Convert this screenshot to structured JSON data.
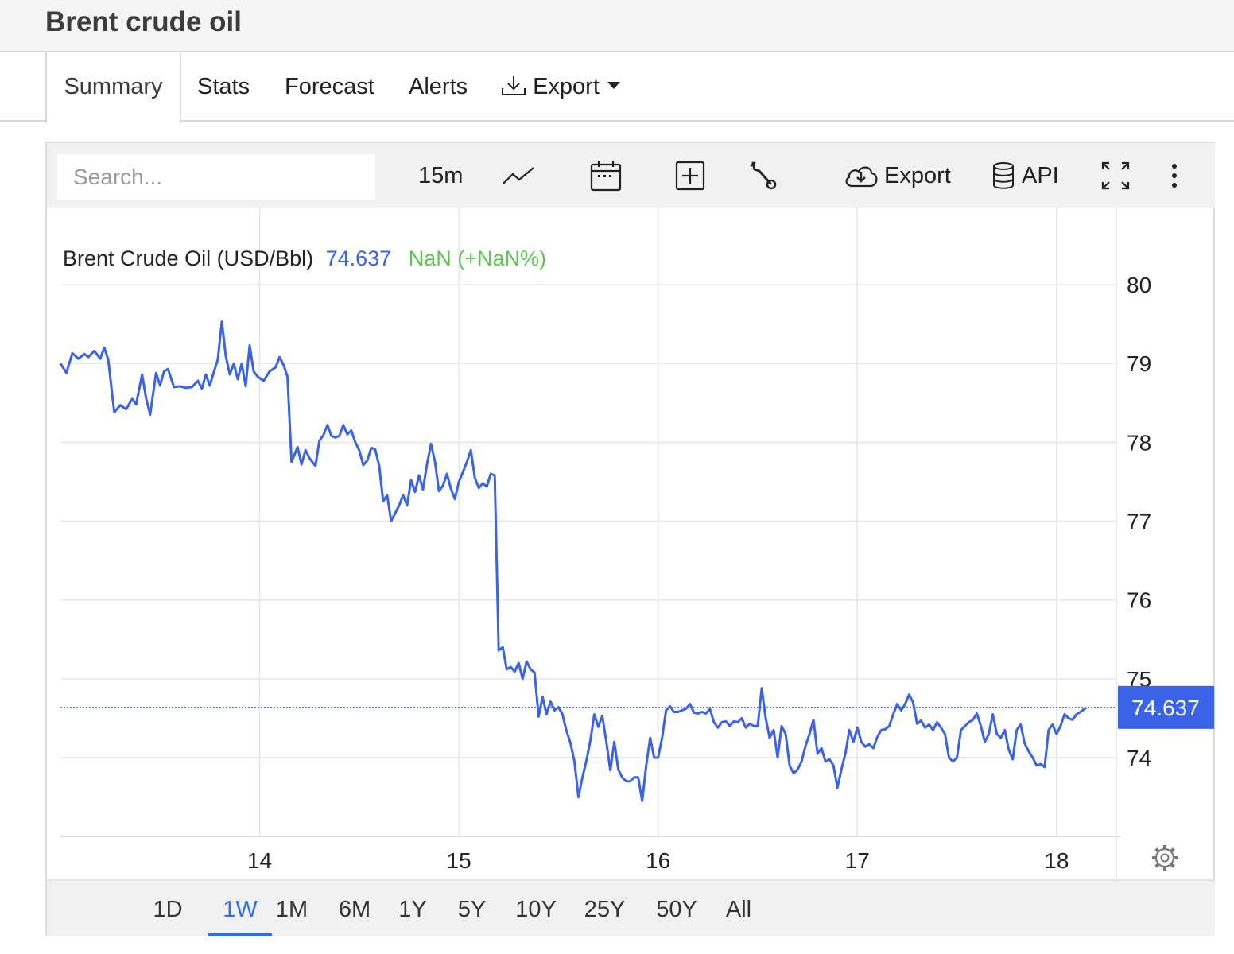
{
  "page": {
    "title": "Brent crude oil"
  },
  "tabs": [
    {
      "label": "Summary",
      "active": true
    },
    {
      "label": "Stats"
    },
    {
      "label": "Forecast"
    },
    {
      "label": "Alerts"
    },
    {
      "label": "Export",
      "icon": "download-icon",
      "dropdown": true
    }
  ],
  "toolbar": {
    "search_placeholder": "Search...",
    "interval": "15m",
    "export_label": "Export",
    "api_label": "API",
    "icons": [
      "line-chart-icon",
      "calendar-icon",
      "add-indicator-icon",
      "wrench-icon",
      "cloud-download-icon",
      "database-icon",
      "fullscreen-icon",
      "more-vertical-icon"
    ]
  },
  "chart_legend": {
    "name": "Brent Crude Oil (USD/Bbl)",
    "price": "74.637",
    "change": "NaN (+NaN%)"
  },
  "colors": {
    "line": "#3b63e8",
    "change": "#5cc651",
    "active": "#2f6ee8"
  },
  "chart_data": {
    "type": "line",
    "title": "",
    "series": [
      {
        "name": "Brent Crude Oil (USD/Bbl)",
        "points": [
          [
            13.0,
            79.0
          ],
          [
            13.03,
            78.88
          ],
          [
            13.06,
            79.13
          ],
          [
            13.09,
            79.06
          ],
          [
            13.12,
            79.12
          ],
          [
            13.14,
            79.08
          ],
          [
            13.17,
            79.16
          ],
          [
            13.2,
            79.06
          ],
          [
            13.22,
            79.2
          ],
          [
            13.24,
            79.05
          ],
          [
            13.27,
            78.38
          ],
          [
            13.3,
            78.47
          ],
          [
            13.33,
            78.42
          ],
          [
            13.36,
            78.55
          ],
          [
            13.38,
            78.48
          ],
          [
            13.41,
            78.86
          ],
          [
            13.43,
            78.56
          ],
          [
            13.45,
            78.35
          ],
          [
            13.48,
            78.88
          ],
          [
            13.5,
            78.72
          ],
          [
            13.52,
            78.9
          ],
          [
            13.54,
            78.93
          ],
          [
            13.57,
            78.7
          ],
          [
            13.6,
            78.71
          ],
          [
            13.63,
            78.69
          ],
          [
            13.66,
            78.7
          ],
          [
            13.69,
            78.78
          ],
          [
            13.71,
            78.68
          ],
          [
            13.73,
            78.86
          ],
          [
            13.75,
            78.72
          ],
          [
            13.77,
            78.89
          ],
          [
            13.79,
            79.05
          ],
          [
            13.81,
            79.53
          ],
          [
            13.83,
            79.09
          ],
          [
            13.85,
            78.86
          ],
          [
            13.87,
            79.0
          ],
          [
            13.89,
            78.8
          ],
          [
            13.91,
            79.0
          ],
          [
            13.93,
            78.71
          ],
          [
            13.95,
            79.23
          ],
          [
            13.97,
            78.9
          ],
          [
            13.99,
            78.83
          ],
          [
            14.02,
            78.78
          ],
          [
            14.05,
            78.9
          ],
          [
            14.08,
            78.95
          ],
          [
            14.1,
            79.08
          ],
          [
            14.12,
            78.98
          ],
          [
            14.14,
            78.83
          ],
          [
            14.16,
            77.75
          ],
          [
            14.19,
            77.94
          ],
          [
            14.21,
            77.72
          ],
          [
            14.23,
            77.9
          ],
          [
            14.25,
            77.8
          ],
          [
            14.28,
            77.7
          ],
          [
            14.3,
            78.02
          ],
          [
            14.32,
            78.09
          ],
          [
            14.34,
            78.22
          ],
          [
            14.36,
            78.08
          ],
          [
            14.38,
            78.06
          ],
          [
            14.4,
            78.08
          ],
          [
            14.42,
            78.22
          ],
          [
            14.44,
            78.1
          ],
          [
            14.46,
            78.15
          ],
          [
            14.48,
            78.0
          ],
          [
            14.5,
            77.9
          ],
          [
            14.52,
            77.71
          ],
          [
            14.54,
            77.77
          ],
          [
            14.56,
            77.93
          ],
          [
            14.58,
            77.91
          ],
          [
            14.6,
            77.7
          ],
          [
            14.62,
            77.25
          ],
          [
            14.64,
            77.33
          ],
          [
            14.66,
            77.0
          ],
          [
            14.68,
            77.1
          ],
          [
            14.7,
            77.2
          ],
          [
            14.72,
            77.33
          ],
          [
            14.74,
            77.2
          ],
          [
            14.76,
            77.52
          ],
          [
            14.78,
            77.37
          ],
          [
            14.8,
            77.58
          ],
          [
            14.82,
            77.4
          ],
          [
            14.84,
            77.72
          ],
          [
            14.86,
            77.98
          ],
          [
            14.88,
            77.75
          ],
          [
            14.9,
            77.38
          ],
          [
            14.92,
            77.45
          ],
          [
            14.94,
            77.6
          ],
          [
            14.96,
            77.41
          ],
          [
            14.98,
            77.28
          ],
          [
            15.0,
            77.5
          ],
          [
            15.02,
            77.62
          ],
          [
            15.04,
            77.75
          ],
          [
            15.06,
            77.9
          ],
          [
            15.08,
            77.55
          ],
          [
            15.1,
            77.42
          ],
          [
            15.12,
            77.48
          ],
          [
            15.14,
            77.44
          ],
          [
            15.16,
            77.6
          ],
          [
            15.18,
            77.58
          ],
          [
            15.2,
            75.36
          ],
          [
            15.22,
            75.4
          ],
          [
            15.24,
            75.12
          ],
          [
            15.26,
            75.15
          ],
          [
            15.28,
            75.09
          ],
          [
            15.3,
            75.2
          ],
          [
            15.32,
            75.0
          ],
          [
            15.34,
            75.22
          ],
          [
            15.36,
            75.12
          ],
          [
            15.38,
            75.08
          ],
          [
            15.4,
            74.52
          ],
          [
            15.42,
            74.77
          ],
          [
            15.44,
            74.55
          ],
          [
            15.46,
            74.71
          ],
          [
            15.48,
            74.6
          ],
          [
            15.5,
            74.64
          ],
          [
            15.52,
            74.55
          ],
          [
            15.54,
            74.34
          ],
          [
            15.56,
            74.19
          ],
          [
            15.58,
            73.95
          ],
          [
            15.6,
            73.5
          ],
          [
            15.62,
            73.75
          ],
          [
            15.64,
            73.96
          ],
          [
            15.66,
            74.22
          ],
          [
            15.68,
            74.55
          ],
          [
            15.7,
            74.39
          ],
          [
            15.72,
            74.53
          ],
          [
            15.74,
            74.2
          ],
          [
            15.76,
            73.84
          ],
          [
            15.78,
            74.2
          ],
          [
            15.8,
            73.85
          ],
          [
            15.82,
            73.75
          ],
          [
            15.84,
            73.7
          ],
          [
            15.86,
            73.7
          ],
          [
            15.88,
            73.75
          ],
          [
            15.9,
            73.75
          ],
          [
            15.92,
            73.45
          ],
          [
            15.94,
            73.9
          ],
          [
            15.96,
            74.25
          ],
          [
            15.98,
            74.0
          ],
          [
            16.0,
            74.0
          ],
          [
            16.02,
            74.25
          ],
          [
            16.04,
            74.6
          ],
          [
            16.06,
            74.65
          ],
          [
            16.08,
            74.58
          ],
          [
            16.1,
            74.58
          ],
          [
            16.12,
            74.6
          ],
          [
            16.14,
            74.62
          ],
          [
            16.16,
            74.68
          ],
          [
            16.18,
            74.57
          ],
          [
            16.2,
            74.56
          ],
          [
            16.22,
            74.58
          ],
          [
            16.24,
            74.56
          ],
          [
            16.26,
            74.62
          ],
          [
            16.28,
            74.45
          ],
          [
            16.3,
            74.38
          ],
          [
            16.32,
            74.45
          ],
          [
            16.34,
            74.46
          ],
          [
            16.36,
            74.4
          ],
          [
            16.38,
            74.46
          ],
          [
            16.4,
            74.45
          ],
          [
            16.42,
            74.5
          ],
          [
            16.44,
            74.38
          ],
          [
            16.46,
            74.43
          ],
          [
            16.48,
            74.4
          ],
          [
            16.5,
            74.4
          ],
          [
            16.52,
            74.88
          ],
          [
            16.54,
            74.5
          ],
          [
            16.56,
            74.25
          ],
          [
            16.58,
            74.35
          ],
          [
            16.6,
            74.0
          ],
          [
            16.62,
            74.4
          ],
          [
            16.64,
            74.3
          ],
          [
            16.66,
            73.9
          ],
          [
            16.68,
            73.8
          ],
          [
            16.7,
            73.85
          ],
          [
            16.72,
            73.95
          ],
          [
            16.74,
            74.15
          ],
          [
            16.76,
            74.3
          ],
          [
            16.78,
            74.48
          ],
          [
            16.8,
            74.05
          ],
          [
            16.82,
            74.12
          ],
          [
            16.84,
            73.95
          ],
          [
            16.86,
            73.98
          ],
          [
            16.88,
            73.9
          ],
          [
            16.9,
            73.62
          ],
          [
            16.92,
            73.85
          ],
          [
            16.94,
            74.05
          ],
          [
            16.96,
            74.35
          ],
          [
            16.98,
            74.2
          ],
          [
            17.0,
            74.38
          ],
          [
            17.02,
            74.2
          ],
          [
            17.04,
            74.14
          ],
          [
            17.06,
            74.17
          ],
          [
            17.08,
            74.12
          ],
          [
            17.1,
            74.26
          ],
          [
            17.12,
            74.35
          ],
          [
            17.14,
            74.36
          ],
          [
            17.16,
            74.4
          ],
          [
            17.18,
            74.55
          ],
          [
            17.2,
            74.68
          ],
          [
            17.22,
            74.6
          ],
          [
            17.24,
            74.68
          ],
          [
            17.26,
            74.8
          ],
          [
            17.28,
            74.7
          ],
          [
            17.3,
            74.43
          ],
          [
            17.32,
            74.47
          ],
          [
            17.34,
            74.38
          ],
          [
            17.36,
            74.42
          ],
          [
            17.38,
            74.35
          ],
          [
            17.4,
            74.45
          ],
          [
            17.42,
            74.38
          ],
          [
            17.44,
            74.3
          ],
          [
            17.46,
            74.0
          ],
          [
            17.48,
            73.95
          ],
          [
            17.5,
            74.0
          ],
          [
            17.52,
            74.35
          ],
          [
            17.54,
            74.4
          ],
          [
            17.56,
            74.45
          ],
          [
            17.58,
            74.48
          ],
          [
            17.6,
            74.56
          ],
          [
            17.62,
            74.4
          ],
          [
            17.64,
            74.2
          ],
          [
            17.66,
            74.3
          ],
          [
            17.68,
            74.55
          ],
          [
            17.7,
            74.3
          ],
          [
            17.72,
            74.25
          ],
          [
            17.74,
            74.35
          ],
          [
            17.76,
            74.1
          ],
          [
            17.78,
            73.98
          ],
          [
            17.8,
            74.35
          ],
          [
            17.82,
            74.42
          ],
          [
            17.84,
            74.18
          ],
          [
            17.86,
            74.08
          ],
          [
            17.88,
            74.0
          ],
          [
            17.9,
            73.9
          ],
          [
            17.92,
            73.92
          ],
          [
            17.94,
            73.88
          ],
          [
            17.96,
            74.35
          ],
          [
            17.98,
            74.42
          ],
          [
            18.0,
            74.3
          ],
          [
            18.02,
            74.4
          ],
          [
            18.04,
            74.55
          ],
          [
            18.06,
            74.5
          ],
          [
            18.08,
            74.48
          ],
          [
            18.1,
            74.55
          ],
          [
            18.12,
            74.58
          ],
          [
            18.15,
            74.637
          ]
        ]
      }
    ],
    "x_ticks": [
      14,
      15,
      16,
      17,
      18
    ],
    "y_ticks": [
      74,
      75,
      76,
      77,
      78,
      79,
      80
    ],
    "xlim": [
      13.0,
      18.3
    ],
    "ylim": [
      73.0,
      81.0
    ],
    "current_value": 74.637,
    "current_label": "74.637",
    "grid": true,
    "y_axis_side": "right"
  },
  "ranges": [
    {
      "label": "1D"
    },
    {
      "label": "1W",
      "active": true
    },
    {
      "label": "1M"
    },
    {
      "label": "6M"
    },
    {
      "label": "1Y"
    },
    {
      "label": "5Y"
    },
    {
      "label": "10Y"
    },
    {
      "label": "25Y"
    },
    {
      "label": "50Y"
    },
    {
      "label": "All"
    }
  ]
}
